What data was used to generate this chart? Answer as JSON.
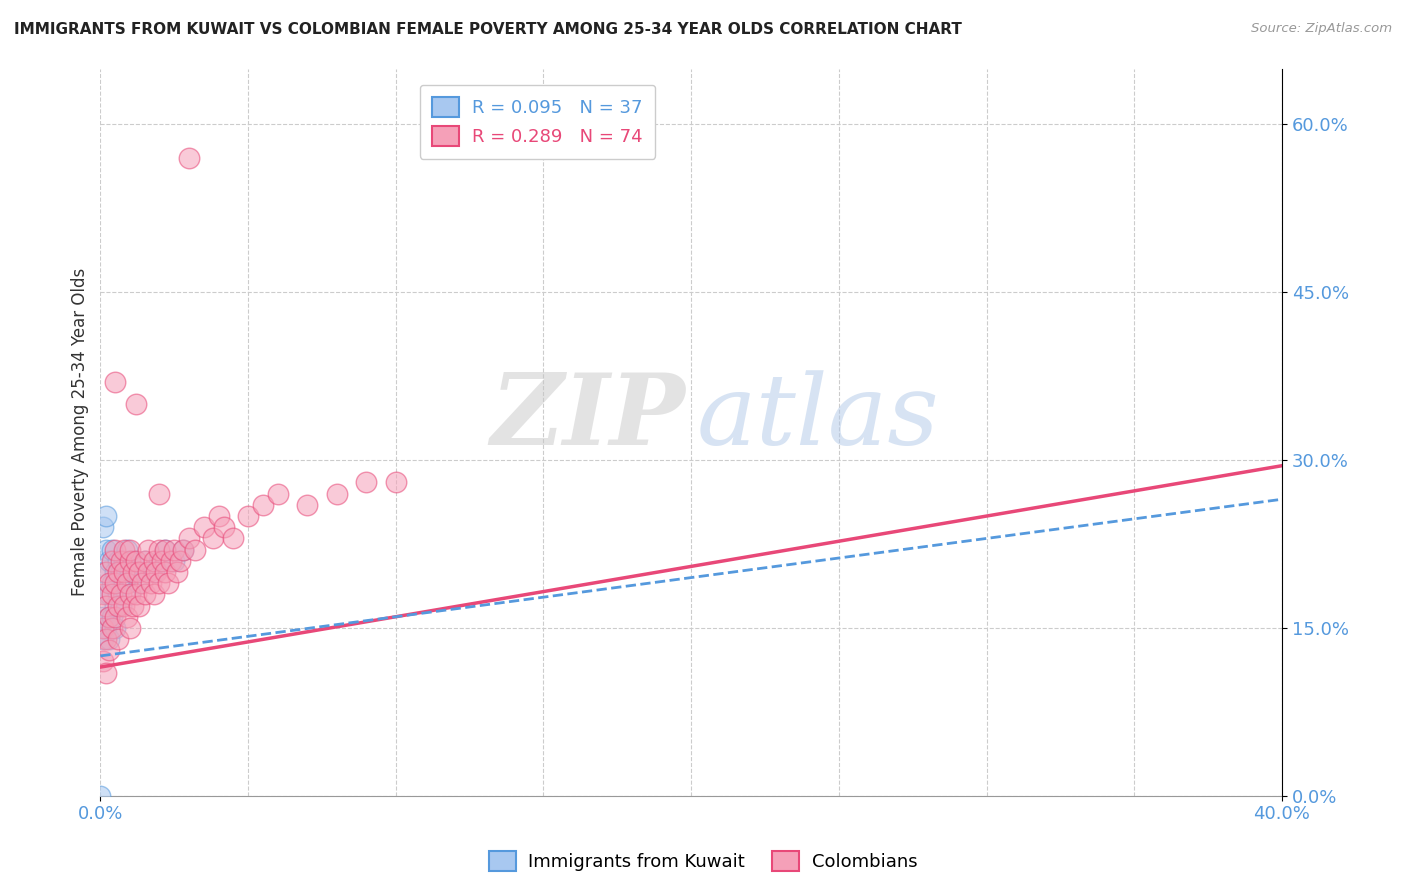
{
  "title": "IMMIGRANTS FROM KUWAIT VS COLOMBIAN FEMALE POVERTY AMONG 25-34 YEAR OLDS CORRELATION CHART",
  "source": "Source: ZipAtlas.com",
  "ylabel": "Female Poverty Among 25-34 Year Olds",
  "kuwait_color": "#a8c8f0",
  "colombian_color": "#f5a0b8",
  "kuwait_line_color": "#5599dd",
  "colombian_line_color": "#e84878",
  "watermark_zip": "ZIP",
  "watermark_atlas": "atlas",
  "background": "#ffffff",
  "grid_color": "#cccccc",
  "legend_kuwait": "R = 0.095   N = 37",
  "legend_colombian": "R = 0.289   N = 74",
  "xlim": [
    0.0,
    0.4
  ],
  "ylim": [
    0.0,
    0.65
  ],
  "yticks": [
    0.0,
    0.15,
    0.3,
    0.45,
    0.6
  ],
  "ytick_labels": [
    "0.0%",
    "15.0%",
    "30.0%",
    "45.0%",
    "60.0%"
  ],
  "xtick_labels": [
    "0.0%",
    "40.0%"
  ],
  "xticks": [
    0.0,
    0.4
  ],
  "kuwait_line_x": [
    0.0,
    0.4
  ],
  "kuwait_line_y": [
    0.125,
    0.265
  ],
  "colombian_line_x": [
    0.0,
    0.4
  ],
  "colombian_line_y": [
    0.115,
    0.295
  ],
  "kuwait_x": [
    0.001,
    0.001,
    0.001,
    0.002,
    0.002,
    0.002,
    0.003,
    0.003,
    0.003,
    0.003,
    0.004,
    0.004,
    0.004,
    0.005,
    0.005,
    0.005,
    0.006,
    0.006,
    0.007,
    0.007,
    0.008,
    0.008,
    0.009,
    0.01,
    0.01,
    0.011,
    0.012,
    0.013,
    0.015,
    0.018,
    0.02,
    0.022,
    0.025,
    0.028,
    0.001,
    0.002,
    0.0
  ],
  "kuwait_y": [
    0.2,
    0.16,
    0.14,
    0.22,
    0.18,
    0.15,
    0.21,
    0.18,
    0.16,
    0.14,
    0.22,
    0.19,
    0.16,
    0.2,
    0.17,
    0.15,
    0.21,
    0.18,
    0.2,
    0.17,
    0.19,
    0.21,
    0.22,
    0.2,
    0.18,
    0.21,
    0.2,
    0.19,
    0.21,
    0.2,
    0.21,
    0.22,
    0.21,
    0.22,
    0.24,
    0.25,
    0.0
  ],
  "colombian_x": [
    0.001,
    0.001,
    0.001,
    0.002,
    0.002,
    0.002,
    0.002,
    0.003,
    0.003,
    0.003,
    0.004,
    0.004,
    0.004,
    0.005,
    0.005,
    0.005,
    0.006,
    0.006,
    0.006,
    0.007,
    0.007,
    0.008,
    0.008,
    0.008,
    0.009,
    0.009,
    0.01,
    0.01,
    0.01,
    0.01,
    0.011,
    0.011,
    0.012,
    0.012,
    0.013,
    0.013,
    0.014,
    0.015,
    0.015,
    0.016,
    0.016,
    0.017,
    0.018,
    0.018,
    0.019,
    0.02,
    0.02,
    0.021,
    0.022,
    0.022,
    0.023,
    0.024,
    0.025,
    0.026,
    0.027,
    0.028,
    0.03,
    0.032,
    0.035,
    0.038,
    0.04,
    0.042,
    0.045,
    0.05,
    0.055,
    0.06,
    0.07,
    0.08,
    0.09,
    0.1,
    0.005,
    0.012,
    0.02,
    0.03
  ],
  "colombian_y": [
    0.18,
    0.15,
    0.12,
    0.2,
    0.17,
    0.14,
    0.11,
    0.19,
    0.16,
    0.13,
    0.21,
    0.18,
    0.15,
    0.22,
    0.19,
    0.16,
    0.2,
    0.17,
    0.14,
    0.21,
    0.18,
    0.2,
    0.17,
    0.22,
    0.19,
    0.16,
    0.21,
    0.18,
    0.15,
    0.22,
    0.2,
    0.17,
    0.21,
    0.18,
    0.2,
    0.17,
    0.19,
    0.21,
    0.18,
    0.2,
    0.22,
    0.19,
    0.21,
    0.18,
    0.2,
    0.22,
    0.19,
    0.21,
    0.2,
    0.22,
    0.19,
    0.21,
    0.22,
    0.2,
    0.21,
    0.22,
    0.23,
    0.22,
    0.24,
    0.23,
    0.25,
    0.24,
    0.23,
    0.25,
    0.26,
    0.27,
    0.26,
    0.27,
    0.28,
    0.28,
    0.37,
    0.35,
    0.27,
    0.57
  ]
}
